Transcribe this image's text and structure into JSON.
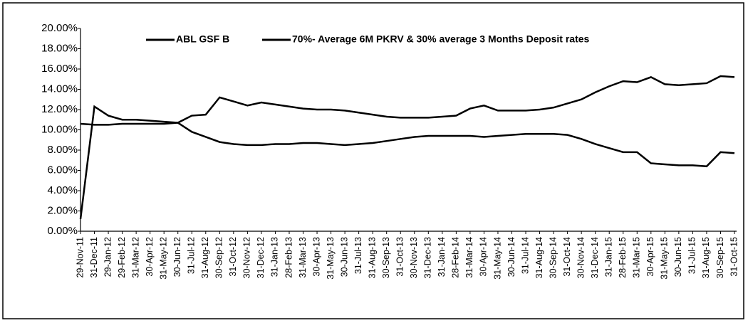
{
  "chart_data": {
    "type": "line",
    "categories": [
      "29-Nov-11",
      "31-Dec-11",
      "29-Jan-12",
      "29-Feb-12",
      "31-Mar-12",
      "30-Apr-12",
      "31-May-12",
      "30-Jun-12",
      "31-Jul-12",
      "31-Aug-12",
      "30-Sep-12",
      "31-Oct-12",
      "30-Nov-12",
      "31-Dec-12",
      "31-Jan-13",
      "28-Feb-13",
      "31-Mar-13",
      "30-Apr-13",
      "31-May-13",
      "30-Jun-13",
      "31-Jul-13",
      "31-Aug-13",
      "30-Sep-13",
      "31-Oct-13",
      "30-Nov-13",
      "31-Dec-13",
      "31-Jan-14",
      "28-Feb-14",
      "31-Mar-14",
      "30-Apr-14",
      "31-May-14",
      "30-Jun-14",
      "31-Jul-14",
      "31-Aug-14",
      "30-Sep-14",
      "31-Oct-14",
      "30-Nov-14",
      "31-Dec-14",
      "31-Jan-15",
      "28-Feb-15",
      "31-Mar-15",
      "30-Apr-15",
      "31-May-15",
      "30-Jun-15",
      "31-Jul-15",
      "31-Aug-15",
      "30-Sep-15",
      "31-Oct-15"
    ],
    "series": [
      {
        "name": "ABL GSF B",
        "color": "#000000",
        "values": [
          1.2,
          12.3,
          11.4,
          11.0,
          11.0,
          10.9,
          10.8,
          10.7,
          11.4,
          11.5,
          13.2,
          12.8,
          12.4,
          12.7,
          12.5,
          12.3,
          12.1,
          12.0,
          12.0,
          11.9,
          11.7,
          11.5,
          11.3,
          11.2,
          11.2,
          11.2,
          11.3,
          11.4,
          12.1,
          12.4,
          11.9,
          11.9,
          11.9,
          12.0,
          12.2,
          12.6,
          13.0,
          13.7,
          14.3,
          14.8,
          14.7,
          15.2,
          14.5,
          14.4,
          14.5,
          14.6,
          15.3,
          15.2
        ]
      },
      {
        "name": "70%- Average 6M PKRV & 30% average 3 Months Deposit rates",
        "color": "#000000",
        "values": [
          10.6,
          10.5,
          10.5,
          10.6,
          10.6,
          10.6,
          10.6,
          10.7,
          9.8,
          9.3,
          8.8,
          8.6,
          8.5,
          8.5,
          8.6,
          8.6,
          8.7,
          8.7,
          8.6,
          8.5,
          8.6,
          8.7,
          8.9,
          9.1,
          9.3,
          9.4,
          9.4,
          9.4,
          9.4,
          9.3,
          9.4,
          9.5,
          9.6,
          9.6,
          9.6,
          9.5,
          9.1,
          8.6,
          8.2,
          7.8,
          7.8,
          6.7,
          6.6,
          6.5,
          6.5,
          6.4,
          7.8,
          7.7
        ]
      }
    ],
    "ylim": [
      0,
      20
    ],
    "yticks": [
      {
        "value": 0,
        "label": "0.00%"
      },
      {
        "value": 2,
        "label": "2.00%"
      },
      {
        "value": 4,
        "label": "4.00%"
      },
      {
        "value": 6,
        "label": "6.00%"
      },
      {
        "value": 8,
        "label": "8.00%"
      },
      {
        "value": 10,
        "label": "10.00%"
      },
      {
        "value": 12,
        "label": "12.00%"
      },
      {
        "value": 14,
        "label": "14.00%"
      },
      {
        "value": 16,
        "label": "16.00%"
      },
      {
        "value": 18,
        "label": "18.00%"
      },
      {
        "value": 20,
        "label": "20.00%"
      }
    ],
    "legend": "top"
  }
}
